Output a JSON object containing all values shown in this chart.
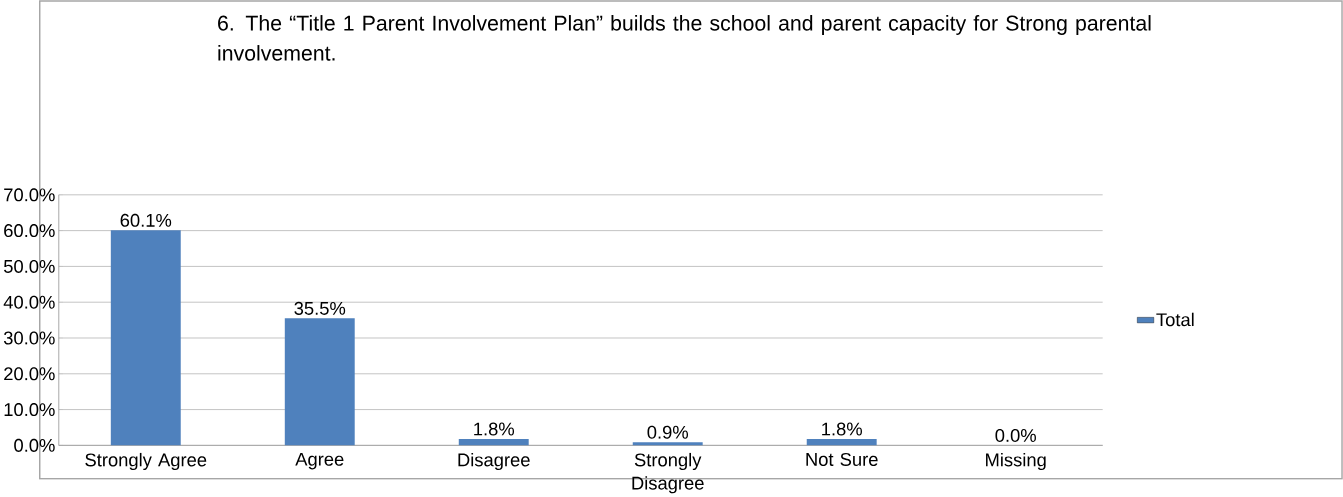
{
  "chart_data": {
    "type": "bar",
    "title": "6.  The “Title 1 Parent Involvement Plan” builds the school and parent capacity for Strong parental involvement.",
    "categories": [
      "Strongly Agree",
      "Agree",
      "Disagree",
      "Strongly Disagree",
      "Not Sure",
      "Missing"
    ],
    "series": [
      {
        "name": "Total",
        "color": "#4f81bd",
        "values": [
          60.1,
          35.5,
          1.8,
          0.9,
          1.8,
          0.0
        ],
        "value_labels": [
          "60.1%",
          "35.5%",
          "1.8%",
          "0.9%",
          "1.8%",
          "0.0%"
        ]
      }
    ],
    "ylim": [
      0,
      70
    ],
    "yticks": [
      {
        "value": 0,
        "label": "0.0%"
      },
      {
        "value": 10,
        "label": "10.0%"
      },
      {
        "value": 20,
        "label": "20.0%"
      },
      {
        "value": 30,
        "label": "30.0%"
      },
      {
        "value": 40,
        "label": "40.0%"
      },
      {
        "value": 50,
        "label": "50.0%"
      },
      {
        "value": 60,
        "label": "60.0%"
      },
      {
        "value": 70,
        "label": "70.0%"
      }
    ],
    "grid": "y",
    "legend": "right"
  }
}
